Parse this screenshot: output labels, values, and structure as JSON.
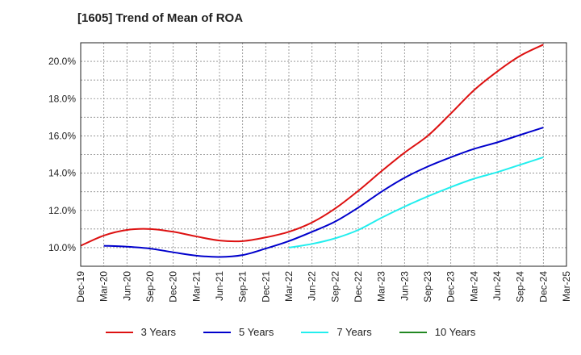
{
  "chart_data": {
    "type": "line",
    "title": "[1605]  Trend of Mean of ROA",
    "x": [
      "Dec-19",
      "Mar-20",
      "Jun-20",
      "Sep-20",
      "Dec-20",
      "Mar-21",
      "Jun-21",
      "Sep-21",
      "Dec-21",
      "Mar-22",
      "Jun-22",
      "Sep-22",
      "Dec-22",
      "Mar-23",
      "Jun-23",
      "Sep-23",
      "Dec-23",
      "Mar-24",
      "Jun-24",
      "Sep-24",
      "Dec-24",
      "Mar-25"
    ],
    "ylim": [
      9.0,
      21.0
    ],
    "y_ticks": [
      10.0,
      12.0,
      14.0,
      16.0,
      18.0,
      20.0
    ],
    "y_tick_labels": [
      "10.0%",
      "12.0%",
      "14.0%",
      "16.0%",
      "18.0%",
      "20.0%"
    ],
    "grid": true,
    "legend_position": "bottom",
    "series": [
      {
        "name": "3 Years",
        "color": "#dd1111",
        "values": [
          10.1,
          10.65,
          10.95,
          11.0,
          10.85,
          10.6,
          10.38,
          10.35,
          10.55,
          10.85,
          11.35,
          12.1,
          13.05,
          14.1,
          15.1,
          16.0,
          17.2,
          18.45,
          19.45,
          20.3,
          20.9,
          null
        ]
      },
      {
        "name": "5 Years",
        "color": "#0000cc",
        "values": [
          null,
          10.1,
          10.05,
          9.95,
          9.75,
          9.57,
          9.5,
          9.6,
          9.95,
          10.35,
          10.85,
          11.4,
          12.15,
          13.0,
          13.75,
          14.35,
          14.85,
          15.3,
          15.65,
          16.05,
          16.45,
          null
        ]
      },
      {
        "name": "7 Years",
        "color": "#22eeee",
        "values": [
          null,
          null,
          null,
          null,
          null,
          null,
          null,
          null,
          null,
          10.0,
          10.2,
          10.5,
          10.95,
          11.6,
          12.2,
          12.75,
          13.25,
          13.7,
          14.05,
          14.45,
          14.85,
          null
        ]
      },
      {
        "name": "10 Years",
        "color": "#228822",
        "values": [
          null,
          null,
          null,
          null,
          null,
          null,
          null,
          null,
          null,
          null,
          null,
          null,
          null,
          null,
          null,
          null,
          null,
          null,
          null,
          null,
          null,
          null
        ]
      }
    ]
  }
}
